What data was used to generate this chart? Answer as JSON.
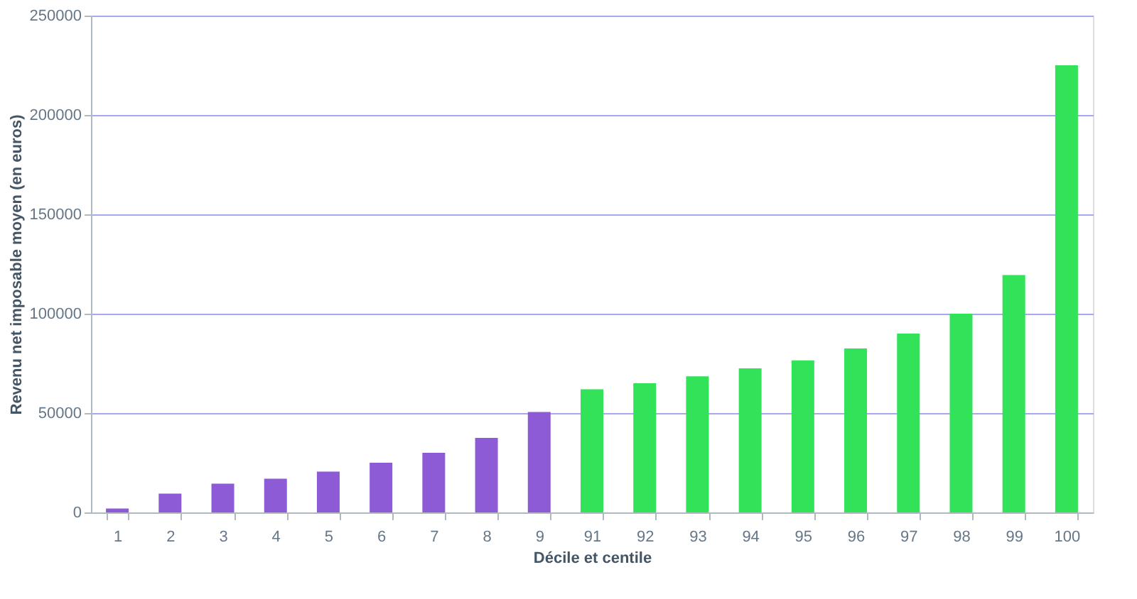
{
  "chart_data": {
    "type": "bar",
    "xlabel": "Décile et centile",
    "ylabel": "Revenu net imposable moyen (en euros)",
    "categories": [
      "1",
      "2",
      "3",
      "4",
      "5",
      "6",
      "7",
      "8",
      "9",
      "91",
      "92",
      "93",
      "94",
      "95",
      "96",
      "97",
      "98",
      "99",
      "100"
    ],
    "values": [
      2000,
      9500,
      14500,
      17000,
      20500,
      25000,
      30000,
      37500,
      50500,
      62000,
      65000,
      68500,
      72500,
      76500,
      82500,
      90000,
      100000,
      119500,
      225000
    ],
    "colors": [
      "#8e5bd6",
      "#8e5bd6",
      "#8e5bd6",
      "#8e5bd6",
      "#8e5bd6",
      "#8e5bd6",
      "#8e5bd6",
      "#8e5bd6",
      "#8e5bd6",
      "#32e35a",
      "#32e35a",
      "#32e35a",
      "#32e35a",
      "#32e35a",
      "#32e35a",
      "#32e35a",
      "#32e35a",
      "#32e35a",
      "#32e35a"
    ],
    "ylim": [
      0,
      250000
    ],
    "yticks": [
      0,
      50000,
      100000,
      150000,
      200000,
      250000
    ],
    "grid": "y"
  }
}
